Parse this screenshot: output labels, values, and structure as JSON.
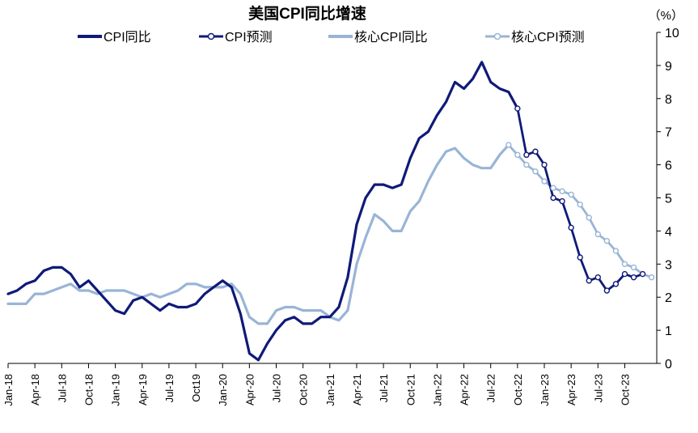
{
  "chart_data": {
    "type": "line",
    "title": "美国CPI同比增速",
    "unit_label": "（%）",
    "ylim": [
      0,
      10
    ],
    "yticks": [
      0,
      1,
      2,
      3,
      4,
      5,
      6,
      7,
      8,
      9,
      10
    ],
    "y_axis_position": "right",
    "grid": false,
    "legend_position": "top",
    "x_tick_labels": [
      "Jan-18",
      "Apr-18",
      "Jul-18",
      "Oct-18",
      "Jan-19",
      "Apr-19",
      "Jul-19",
      "Oct19",
      "Jan-20",
      "Apr-20",
      "Jul-20",
      "Oct-20",
      "Jan-21",
      "Apr-21",
      "Jul-21",
      "Oct-21",
      "Jan-22",
      "Apr-22",
      "Jul-22",
      "Oct-22",
      "Jan-23",
      "Apr-23",
      "Jul-23",
      "Oct-23"
    ],
    "x_start": "2018-01",
    "series": [
      {
        "name": "CPI同比",
        "color": "#0f1a78",
        "start_index": 0,
        "marker": "none",
        "values": [
          2.1,
          2.2,
          2.4,
          2.5,
          2.8,
          2.9,
          2.9,
          2.7,
          2.3,
          2.5,
          2.2,
          1.9,
          1.6,
          1.5,
          1.9,
          2.0,
          1.8,
          1.6,
          1.8,
          1.7,
          1.7,
          1.8,
          2.1,
          2.3,
          2.5,
          2.3,
          1.5,
          0.3,
          0.1,
          0.6,
          1.0,
          1.3,
          1.4,
          1.2,
          1.2,
          1.4,
          1.4,
          1.7,
          2.6,
          4.2,
          5.0,
          5.4,
          5.4,
          5.3,
          5.4,
          6.2,
          6.8,
          7.0,
          7.5,
          7.9,
          8.5,
          8.3,
          8.6,
          9.1,
          8.5,
          8.3,
          8.2,
          7.7
        ]
      },
      {
        "name": "CPI预测",
        "color": "#0f1a78",
        "start_index": 57,
        "marker": "circle",
        "values": [
          7.7,
          6.3,
          6.4,
          6.0,
          5.0,
          4.9,
          4.1,
          3.2,
          2.5,
          2.6,
          2.2,
          2.4,
          2.7,
          2.6,
          2.7
        ]
      },
      {
        "name": "核心CPI同比",
        "color": "#99b4d6",
        "start_index": 0,
        "marker": "none",
        "values": [
          1.8,
          1.8,
          1.8,
          2.1,
          2.1,
          2.2,
          2.3,
          2.4,
          2.2,
          2.2,
          2.1,
          2.2,
          2.2,
          2.2,
          2.1,
          2.0,
          2.1,
          2.0,
          2.1,
          2.2,
          2.4,
          2.4,
          2.3,
          2.3,
          2.3,
          2.4,
          2.1,
          1.4,
          1.2,
          1.2,
          1.6,
          1.7,
          1.7,
          1.6,
          1.6,
          1.6,
          1.4,
          1.3,
          1.6,
          3.0,
          3.8,
          4.5,
          4.3,
          4.0,
          4.0,
          4.6,
          4.9,
          5.5,
          6.0,
          6.4,
          6.5,
          6.2,
          6.0,
          5.9,
          5.9,
          6.3,
          6.6
        ]
      },
      {
        "name": "核心CPI预测",
        "color": "#99b4d6",
        "start_index": 56,
        "marker": "circle",
        "values": [
          6.6,
          6.3,
          6.0,
          5.8,
          5.5,
          5.3,
          5.2,
          5.1,
          4.8,
          4.4,
          3.9,
          3.7,
          3.4,
          3.0,
          2.9,
          2.7,
          2.6
        ]
      }
    ]
  }
}
